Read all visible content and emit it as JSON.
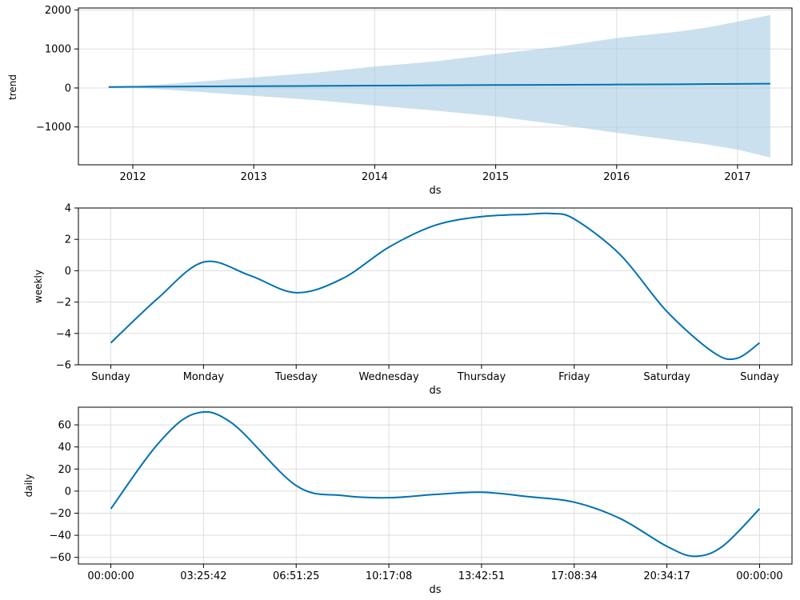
{
  "chart_data": [
    {
      "type": "area",
      "ylabel": "trend",
      "xlabel": "ds",
      "x_range": [
        2011.55,
        2017.45
      ],
      "ylim": [
        -1970,
        2050
      ],
      "x_ticks": [
        2012,
        2013,
        2014,
        2015,
        2016,
        2017
      ],
      "x_tick_labels": [
        "2012",
        "2013",
        "2014",
        "2015",
        "2016",
        "2017"
      ],
      "y_ticks": [
        -1000,
        0,
        1000,
        2000
      ],
      "y_tick_labels": [
        "−1000",
        "0",
        "1000",
        "2000"
      ],
      "grid": true,
      "colors": {
        "line": "#0072b2",
        "band": "#a6cbe3"
      },
      "series": [
        {
          "kind": "line",
          "x": [
            2011.8,
            2012.0,
            2013.0,
            2014.0,
            2015.0,
            2016.0,
            2016.5,
            2017.27
          ],
          "values": [
            25,
            30,
            45,
            60,
            75,
            88,
            95,
            110
          ]
        },
        {
          "kind": "band",
          "x": [
            2011.8,
            2012.0,
            2012.5,
            2013.0,
            2013.5,
            2014.0,
            2014.5,
            2015.0,
            2015.5,
            2016.0,
            2016.5,
            2016.75,
            2017.0,
            2017.27
          ],
          "upper": [
            30,
            40,
            150,
            270,
            390,
            550,
            680,
            870,
            1050,
            1280,
            1440,
            1550,
            1700,
            1870
          ],
          "lower": [
            20,
            15,
            -90,
            -200,
            -310,
            -450,
            -580,
            -730,
            -930,
            -1150,
            -1350,
            -1450,
            -1580,
            -1780
          ]
        }
      ]
    },
    {
      "type": "line",
      "ylabel": "weekly",
      "xlabel": "ds",
      "x_range": [
        -0.35,
        7.35
      ],
      "ylim": [
        -6,
        4
      ],
      "x_ticks": [
        0,
        1,
        2,
        3,
        4,
        5,
        6,
        7
      ],
      "x_tick_labels": [
        "Sunday",
        "Monday",
        "Tuesday",
        "Wednesday",
        "Thursday",
        "Friday",
        "Saturday",
        "Sunday"
      ],
      "y_ticks": [
        -6,
        -4,
        -2,
        0,
        2,
        4
      ],
      "y_tick_labels": [
        "−6",
        "−4",
        "−2",
        "0",
        "2",
        "4"
      ],
      "grid": true,
      "colors": {
        "line": "#0072b2"
      },
      "series": [
        {
          "x": [
            0,
            0.5,
            1.0,
            1.5,
            2.0,
            2.5,
            3.0,
            3.5,
            4.0,
            4.5,
            4.75,
            5.0,
            5.5,
            6.0,
            6.5,
            6.75,
            7.0
          ],
          "values": [
            -4.6,
            -1.8,
            0.55,
            -0.3,
            -1.4,
            -0.5,
            1.5,
            2.9,
            3.45,
            3.6,
            3.65,
            3.3,
            1.0,
            -2.6,
            -5.2,
            -5.6,
            -4.6
          ]
        }
      ]
    },
    {
      "type": "line",
      "ylabel": "daily",
      "xlabel": "ds",
      "x_range": [
        -0.35,
        7.35
      ],
      "ylim": [
        -66,
        76
      ],
      "x_ticks": [
        0,
        1,
        2,
        3,
        4,
        5,
        6,
        7
      ],
      "x_tick_labels": [
        "00:00:00",
        "03:25:42",
        "06:51:25",
        "10:17:08",
        "13:42:51",
        "17:08:34",
        "20:34:17",
        "00:00:00"
      ],
      "y_ticks": [
        -60,
        -40,
        -20,
        0,
        20,
        40,
        60
      ],
      "y_tick_labels": [
        "−60",
        "−40",
        "−20",
        "0",
        "20",
        "40",
        "60"
      ],
      "grid": true,
      "colors": {
        "line": "#0072b2"
      },
      "series": [
        {
          "x": [
            0,
            0.5,
            0.9,
            1.3,
            2.0,
            2.5,
            3.0,
            3.5,
            4.0,
            4.5,
            5.0,
            5.5,
            6.0,
            6.3,
            6.6,
            7.0
          ],
          "values": [
            -16,
            42,
            70,
            62,
            5,
            -4,
            -6,
            -3,
            -1,
            -5,
            -10,
            -25,
            -50,
            -59,
            -50,
            -16
          ]
        }
      ]
    }
  ]
}
